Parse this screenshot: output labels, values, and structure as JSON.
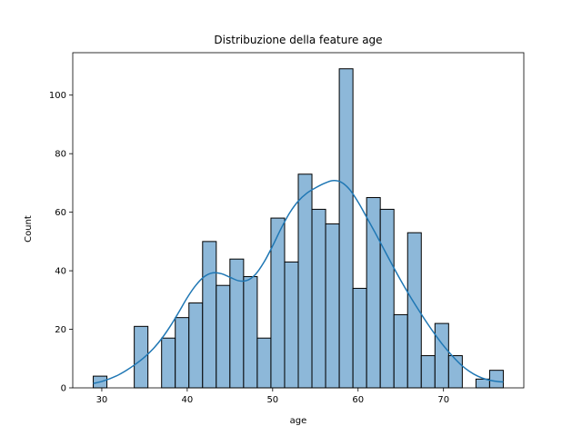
{
  "chart_data": {
    "type": "bar",
    "title": "Distribuzione della feature age",
    "xlabel": "age",
    "ylabel": "Count",
    "xlim": [
      26.6,
      79.4
    ],
    "ylim": [
      0,
      114.5
    ],
    "xticks": [
      30,
      40,
      50,
      60,
      70
    ],
    "yticks": [
      0,
      20,
      40,
      60,
      80,
      100
    ],
    "bin_width": 1.6,
    "bin_start": 29,
    "bar_color": "#8db8d9",
    "edge_color": "#000000",
    "kde_color": "#1f77b4",
    "bins": [
      {
        "x0": 29.0,
        "count": 4
      },
      {
        "x0": 30.6,
        "count": 0
      },
      {
        "x0": 32.2,
        "count": 0
      },
      {
        "x0": 33.8,
        "count": 21
      },
      {
        "x0": 35.4,
        "count": 0
      },
      {
        "x0": 37.0,
        "count": 17
      },
      {
        "x0": 38.6,
        "count": 24
      },
      {
        "x0": 40.2,
        "count": 29
      },
      {
        "x0": 41.8,
        "count": 50
      },
      {
        "x0": 43.4,
        "count": 35
      },
      {
        "x0": 45.0,
        "count": 44
      },
      {
        "x0": 46.6,
        "count": 38
      },
      {
        "x0": 48.2,
        "count": 17
      },
      {
        "x0": 49.8,
        "count": 58
      },
      {
        "x0": 51.4,
        "count": 43
      },
      {
        "x0": 53.0,
        "count": 73
      },
      {
        "x0": 54.6,
        "count": 61
      },
      {
        "x0": 56.2,
        "count": 56
      },
      {
        "x0": 57.8,
        "count": 109
      },
      {
        "x0": 59.4,
        "count": 34
      },
      {
        "x0": 61.0,
        "count": 65
      },
      {
        "x0": 62.6,
        "count": 61
      },
      {
        "x0": 64.2,
        "count": 25
      },
      {
        "x0": 65.8,
        "count": 53
      },
      {
        "x0": 67.4,
        "count": 11
      },
      {
        "x0": 69.0,
        "count": 22
      },
      {
        "x0": 70.6,
        "count": 11
      },
      {
        "x0": 72.2,
        "count": 0
      },
      {
        "x0": 73.8,
        "count": 3
      },
      {
        "x0": 75.4,
        "count": 6
      }
    ],
    "kde": {
      "x": [
        29,
        30,
        31,
        32,
        33,
        34,
        35,
        36,
        37,
        38,
        39,
        40,
        41,
        42,
        43,
        44,
        45,
        46,
        47,
        48,
        49,
        50,
        51,
        52,
        53,
        54,
        55,
        56,
        57,
        58,
        59,
        60,
        61,
        62,
        63,
        64,
        65,
        66,
        67,
        68,
        69,
        70,
        71,
        72,
        73,
        74,
        75,
        76,
        77
      ],
      "y": [
        1.5,
        2.2,
        3.2,
        4.5,
        6.2,
        8.2,
        10.5,
        13.3,
        16.8,
        21.0,
        25.8,
        30.8,
        35.0,
        38.0,
        39.3,
        39.0,
        37.8,
        36.6,
        36.7,
        38.8,
        43.0,
        48.5,
        54.5,
        59.8,
        63.8,
        66.5,
        68.3,
        69.8,
        70.8,
        70.3,
        67.8,
        63.5,
        58.3,
        53.0,
        47.5,
        42.0,
        36.7,
        31.7,
        27.0,
        22.5,
        18.3,
        14.4,
        11.0,
        8.0,
        5.7,
        4.0,
        2.9,
        2.3,
        2.0
      ]
    }
  }
}
